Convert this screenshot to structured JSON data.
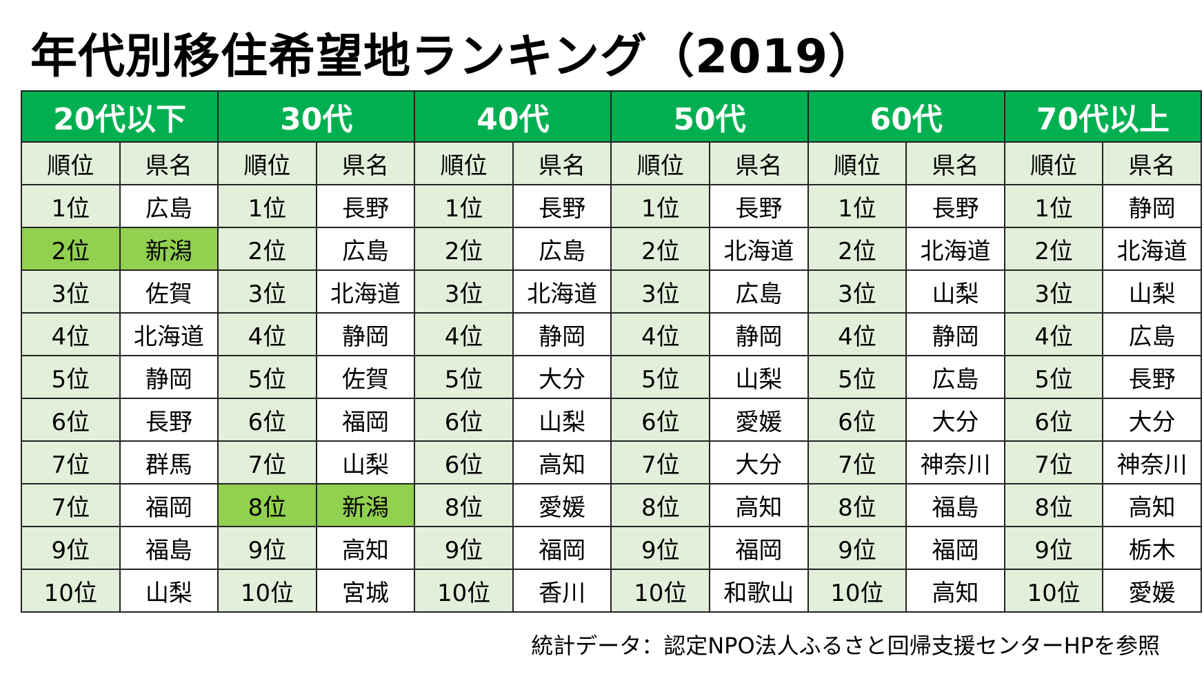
{
  "title": "年代別移住希望地ランキング（2019）",
  "sub_headers": {
    "rank": "順位",
    "prefecture": "県名"
  },
  "colors": {
    "header": "#00B050",
    "rank_cell": "#E2EFDA",
    "highlight": "#92D050"
  },
  "groups": [
    {
      "label": "20代以下",
      "rows": [
        [
          "1位",
          "広島"
        ],
        [
          "2位",
          "新潟"
        ],
        [
          "3位",
          "佐賀"
        ],
        [
          "4位",
          "北海道"
        ],
        [
          "5位",
          "静岡"
        ],
        [
          "6位",
          "長野"
        ],
        [
          "7位",
          "群馬"
        ],
        [
          "7位",
          "福岡"
        ],
        [
          "9位",
          "福島"
        ],
        [
          "10位",
          "山梨"
        ]
      ],
      "highlight_row": 1
    },
    {
      "label": "30代",
      "rows": [
        [
          "1位",
          "長野"
        ],
        [
          "2位",
          "広島"
        ],
        [
          "3位",
          "北海道"
        ],
        [
          "4位",
          "静岡"
        ],
        [
          "5位",
          "佐賀"
        ],
        [
          "6位",
          "福岡"
        ],
        [
          "7位",
          "山梨"
        ],
        [
          "8位",
          "新潟"
        ],
        [
          "9位",
          "高知"
        ],
        [
          "10位",
          "宮城"
        ]
      ],
      "highlight_row": 7
    },
    {
      "label": "40代",
      "rows": [
        [
          "1位",
          "長野"
        ],
        [
          "2位",
          "広島"
        ],
        [
          "3位",
          "北海道"
        ],
        [
          "4位",
          "静岡"
        ],
        [
          "5位",
          "大分"
        ],
        [
          "6位",
          "山梨"
        ],
        [
          "6位",
          "高知"
        ],
        [
          "8位",
          "愛媛"
        ],
        [
          "9位",
          "福岡"
        ],
        [
          "10位",
          "香川"
        ]
      ]
    },
    {
      "label": "50代",
      "rows": [
        [
          "1位",
          "長野"
        ],
        [
          "2位",
          "北海道"
        ],
        [
          "3位",
          "広島"
        ],
        [
          "4位",
          "静岡"
        ],
        [
          "5位",
          "山梨"
        ],
        [
          "6位",
          "愛媛"
        ],
        [
          "7位",
          "大分"
        ],
        [
          "8位",
          "高知"
        ],
        [
          "9位",
          "福岡"
        ],
        [
          "10位",
          "和歌山"
        ]
      ]
    },
    {
      "label": "60代",
      "rows": [
        [
          "1位",
          "長野"
        ],
        [
          "2位",
          "北海道"
        ],
        [
          "3位",
          "山梨"
        ],
        [
          "4位",
          "静岡"
        ],
        [
          "5位",
          "広島"
        ],
        [
          "6位",
          "大分"
        ],
        [
          "7位",
          "神奈川"
        ],
        [
          "8位",
          "福島"
        ],
        [
          "9位",
          "福岡"
        ],
        [
          "10位",
          "高知"
        ]
      ]
    },
    {
      "label": "70代以上",
      "rows": [
        [
          "1位",
          "静岡"
        ],
        [
          "2位",
          "北海道"
        ],
        [
          "3位",
          "山梨"
        ],
        [
          "4位",
          "広島"
        ],
        [
          "5位",
          "長野"
        ],
        [
          "6位",
          "大分"
        ],
        [
          "7位",
          "神奈川"
        ],
        [
          "8位",
          "高知"
        ],
        [
          "9位",
          "栃木"
        ],
        [
          "10位",
          "愛媛"
        ]
      ]
    }
  ],
  "footnote": "統計データ：認定NPO法人ふるさと回帰支援センターHPを参照"
}
